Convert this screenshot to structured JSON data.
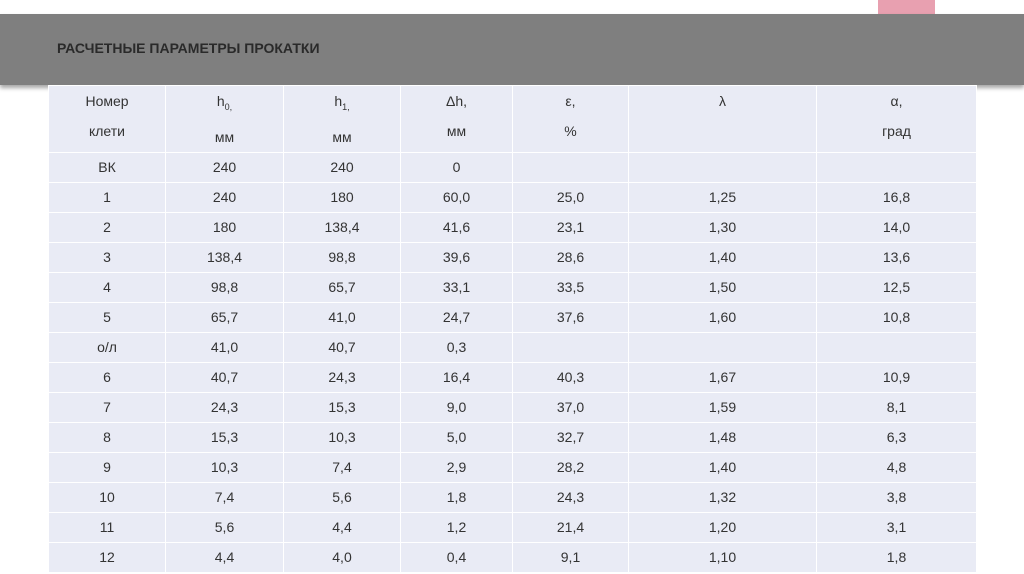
{
  "header": {
    "title": "РАСЧЕТНЫЕ ПАРАМЕТРЫ ПРОКАТКИ"
  },
  "table": {
    "columns": [
      {
        "text": "Номер",
        "unit": "клети"
      },
      {
        "text": "h",
        "sub": "0,",
        "unit": "мм"
      },
      {
        "text": "h",
        "sub": "1,",
        "unit": "мм"
      },
      {
        "text": "Δh,",
        "unit": "мм"
      },
      {
        "text": "ε,",
        "unit": "%"
      },
      {
        "text": "λ"
      },
      {
        "text": "α,",
        "unit": "град"
      }
    ],
    "rows": [
      [
        "ВК",
        "240",
        "240",
        "0"
      ],
      [
        "1",
        "240",
        "180",
        "60,0",
        "25,0",
        "1,25",
        "16,8"
      ],
      [
        "2",
        "180",
        "138,4",
        "41,6",
        "23,1",
        "1,30",
        "14,0"
      ],
      [
        "3",
        "138,4",
        "98,8",
        "39,6",
        "28,6",
        "1,40",
        "13,6"
      ],
      [
        "4",
        "98,8",
        "65,7",
        "33,1",
        "33,5",
        "1,50",
        "12,5"
      ],
      [
        "5",
        "65,7",
        "41,0",
        "24,7",
        "37,6",
        "1,60",
        "10,8"
      ],
      [
        "о/л",
        "41,0",
        "40,7",
        "0,3"
      ],
      [
        "6",
        "40,7",
        "24,3",
        "16,4",
        "40,3",
        "1,67",
        "10,9"
      ],
      [
        "7",
        "24,3",
        "15,3",
        "9,0",
        "37,0",
        "1,59",
        "8,1"
      ],
      [
        "8",
        "15,3",
        "10,3",
        "5,0",
        "32,7",
        "1,48",
        "6,3"
      ],
      [
        "9",
        "10,3",
        "7,4",
        "2,9",
        "28,2",
        "1,40",
        "4,8"
      ],
      [
        "10",
        "7,4",
        "5,6",
        "1,8",
        "24,3",
        "1,32",
        "3,8"
      ],
      [
        "11",
        "5,6",
        "4,4",
        "1,2",
        "21,4",
        "1,20",
        "3,1"
      ],
      [
        "12",
        "4,4",
        "4,0",
        "0,4",
        "9,1",
        "1,10",
        "1,8"
      ]
    ]
  }
}
